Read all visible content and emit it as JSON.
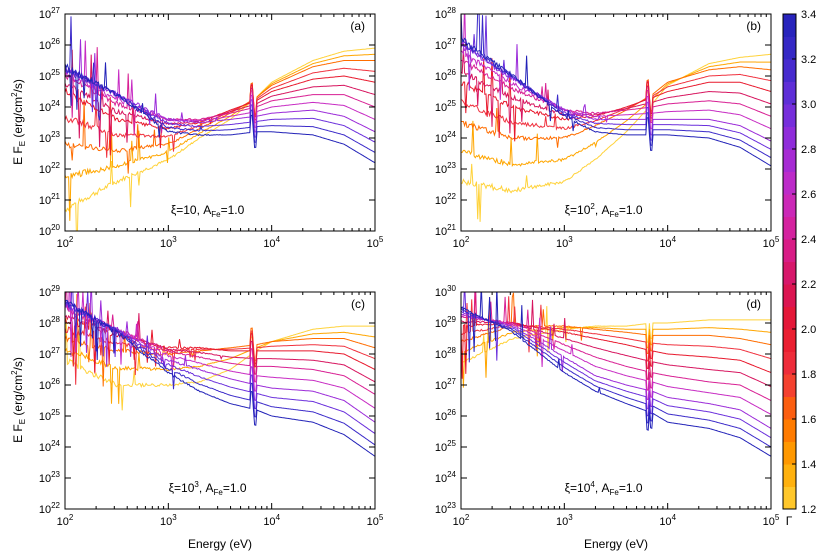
{
  "figure": {
    "xlabel": "Energy (eV)",
    "ylabel": {
      "main": "E F",
      "sub": "E",
      "paren": "(erg/cm",
      "sup": "2",
      "tail": "/s)"
    }
  },
  "colorbar": {
    "label": "Γ",
    "min": 1.2,
    "max": 3.4,
    "ticks": [
      "1.2",
      "1.4",
      "1.6",
      "1.8",
      "2.0",
      "2.2",
      "2.4",
      "2.6",
      "2.8",
      "3.0",
      "3.2",
      "3.4"
    ],
    "colors": [
      "#ffd23a",
      "#ffa600",
      "#ff6d00",
      "#f0323f",
      "#e8182c",
      "#d7145e",
      "#d81f93",
      "#c72bc3",
      "#9b2bd9",
      "#6a2fdc",
      "#3b2ac9",
      "#2222b8"
    ]
  },
  "chart_data": [
    {
      "type": "line",
      "panel": "(a)",
      "annotation": {
        "pre": "ξ=10",
        "sup": "",
        "mid": ", A",
        "sub": "Fe",
        "post": "=1.0"
      },
      "x_log10_range": [
        2,
        5
      ],
      "y_log10_range": [
        20,
        27
      ],
      "x_ticks": [
        2,
        3,
        4,
        5
      ],
      "y_ticks": [
        20,
        21,
        22,
        23,
        24,
        25,
        26,
        27
      ],
      "gamma_values": [
        1.2,
        1.4,
        1.6,
        1.8,
        2.0,
        2.2,
        2.4,
        2.6,
        2.8,
        3.0,
        3.2,
        3.4
      ],
      "series_shape_log10E": [
        2.0,
        2.5,
        3.0,
        3.3,
        3.6,
        3.85,
        4.0,
        4.4,
        4.7,
        5.0
      ],
      "series": [
        {
          "gamma": 1.2,
          "log10_EFE": [
            20.7,
            21.6,
            22.3,
            23.0,
            23.6,
            24.3,
            24.8,
            25.5,
            25.8,
            25.9
          ]
        },
        {
          "gamma": 1.6,
          "log10_EFE": [
            22.8,
            22.6,
            22.8,
            23.3,
            23.8,
            24.3,
            24.7,
            25.3,
            25.5,
            25.5
          ]
        },
        {
          "gamma": 2.0,
          "log10_EFE": [
            24.5,
            23.6,
            23.3,
            23.5,
            23.9,
            24.2,
            24.5,
            24.9,
            25.0,
            24.8
          ]
        },
        {
          "gamma": 2.4,
          "log10_EFE": [
            25.0,
            24.1,
            23.6,
            23.6,
            23.8,
            24.0,
            24.2,
            24.4,
            24.4,
            24.0
          ]
        },
        {
          "gamma": 2.8,
          "log10_EFE": [
            25.2,
            24.4,
            23.6,
            23.5,
            23.6,
            23.7,
            23.8,
            23.9,
            23.7,
            23.2
          ]
        },
        {
          "gamma": 3.4,
          "log10_EFE": [
            25.3,
            24.4,
            23.2,
            23.1,
            23.1,
            23.2,
            23.2,
            23.1,
            22.8,
            22.2
          ]
        }
      ]
    },
    {
      "type": "line",
      "panel": "(b)",
      "annotation": {
        "pre": "ξ=10",
        "sup": "2",
        "mid": ", A",
        "sub": "Fe",
        "post": "=1.0"
      },
      "x_log10_range": [
        2,
        5
      ],
      "y_log10_range": [
        21,
        28
      ],
      "x_ticks": [
        2,
        3,
        4,
        5
      ],
      "y_ticks": [
        21,
        22,
        23,
        24,
        25,
        26,
        27,
        28
      ],
      "gamma_values": [
        1.2,
        1.4,
        1.6,
        1.8,
        2.0,
        2.2,
        2.4,
        2.6,
        2.8,
        3.0,
        3.2,
        3.4
      ],
      "series_shape_log10E": [
        2.0,
        2.5,
        3.0,
        3.3,
        3.6,
        3.85,
        4.0,
        4.4,
        4.7,
        5.0
      ],
      "series": [
        {
          "gamma": 1.2,
          "log10_EFE": [
            22.6,
            22.3,
            22.6,
            23.3,
            24.2,
            25.1,
            25.7,
            26.4,
            26.6,
            26.7
          ]
        },
        {
          "gamma": 1.6,
          "log10_EFE": [
            24.5,
            24.0,
            24.0,
            24.4,
            24.9,
            25.4,
            25.8,
            26.2,
            26.3,
            26.2
          ]
        },
        {
          "gamma": 2.0,
          "log10_EFE": [
            25.8,
            25.0,
            24.6,
            24.7,
            25.0,
            25.3,
            25.5,
            25.8,
            25.8,
            25.5
          ]
        },
        {
          "gamma": 2.4,
          "log10_EFE": [
            26.5,
            25.6,
            24.9,
            24.8,
            24.9,
            25.0,
            25.1,
            25.2,
            25.1,
            24.7
          ]
        },
        {
          "gamma": 2.8,
          "log10_EFE": [
            27.0,
            25.9,
            24.9,
            24.6,
            24.6,
            24.6,
            24.6,
            24.6,
            24.4,
            23.9
          ]
        },
        {
          "gamma": 3.4,
          "log10_EFE": [
            27.2,
            26.0,
            24.7,
            24.2,
            24.1,
            24.1,
            24.1,
            24.0,
            23.7,
            23.1
          ]
        }
      ]
    },
    {
      "type": "line",
      "panel": "(c)",
      "annotation": {
        "pre": "ξ=10",
        "sup": "3",
        "mid": ", A",
        "sub": "Fe",
        "post": "=1.0"
      },
      "x_log10_range": [
        2,
        5
      ],
      "y_log10_range": [
        22,
        29
      ],
      "x_ticks": [
        2,
        3,
        4,
        5
      ],
      "y_ticks": [
        22,
        23,
        24,
        25,
        26,
        27,
        28,
        29
      ],
      "gamma_values": [
        1.2,
        1.4,
        1.6,
        1.8,
        2.0,
        2.2,
        2.4,
        2.6,
        2.8,
        3.0,
        3.2,
        3.4
      ],
      "series_shape_log10E": [
        2.0,
        2.5,
        3.0,
        3.3,
        3.6,
        3.85,
        4.0,
        4.4,
        4.7,
        5.0
      ],
      "series": [
        {
          "gamma": 1.2,
          "log10_EFE": [
            26.8,
            26.0,
            26.0,
            26.1,
            26.5,
            27.1,
            27.4,
            27.8,
            27.9,
            27.9
          ]
        },
        {
          "gamma": 1.6,
          "log10_EFE": [
            27.5,
            27.1,
            27.0,
            27.1,
            27.2,
            27.3,
            27.4,
            27.5,
            27.5,
            27.2
          ]
        },
        {
          "gamma": 2.0,
          "log10_EFE": [
            28.1,
            27.6,
            27.2,
            27.2,
            27.1,
            27.1,
            27.1,
            27.1,
            27.0,
            26.5
          ]
        },
        {
          "gamma": 2.4,
          "log10_EFE": [
            28.4,
            27.8,
            27.1,
            26.9,
            26.7,
            26.6,
            26.6,
            26.5,
            26.3,
            25.7
          ]
        },
        {
          "gamma": 2.8,
          "log10_EFE": [
            28.6,
            27.8,
            26.8,
            26.5,
            26.2,
            26.0,
            25.9,
            25.8,
            25.5,
            24.8
          ]
        },
        {
          "gamma": 3.4,
          "log10_EFE": [
            28.7,
            27.7,
            26.4,
            25.8,
            25.4,
            25.2,
            25.0,
            24.8,
            24.4,
            23.7
          ]
        }
      ]
    },
    {
      "type": "line",
      "panel": "(d)",
      "annotation": {
        "pre": "ξ=10",
        "sup": "4",
        "mid": ", A",
        "sub": "Fe",
        "post": "=1.0"
      },
      "x_log10_range": [
        2,
        5
      ],
      "y_log10_range": [
        23,
        30
      ],
      "x_ticks": [
        2,
        3,
        4,
        5
      ],
      "y_ticks": [
        23,
        24,
        25,
        26,
        27,
        28,
        29,
        30
      ],
      "gamma_values": [
        1.2,
        1.4,
        1.6,
        1.8,
        2.0,
        2.2,
        2.4,
        2.6,
        2.8,
        3.0,
        3.2,
        3.4
      ],
      "series_shape_log10E": [
        2.0,
        2.5,
        3.0,
        3.3,
        3.6,
        3.85,
        4.0,
        4.4,
        4.7,
        5.0
      ],
      "series": [
        {
          "gamma": 1.2,
          "log10_EFE": [
            27.7,
            28.5,
            28.8,
            28.9,
            28.9,
            29.0,
            29.0,
            29.1,
            29.1,
            29.1
          ]
        },
        {
          "gamma": 1.6,
          "log10_EFE": [
            28.4,
            28.9,
            28.9,
            28.8,
            28.7,
            28.6,
            28.6,
            28.6,
            28.5,
            28.3
          ]
        },
        {
          "gamma": 2.0,
          "log10_EFE": [
            28.9,
            29.0,
            28.7,
            28.5,
            28.3,
            28.1,
            28.0,
            27.9,
            27.8,
            27.4
          ]
        },
        {
          "gamma": 2.4,
          "log10_EFE": [
            29.2,
            29.0,
            28.3,
            27.9,
            27.6,
            27.4,
            27.3,
            27.1,
            27.0,
            26.5
          ]
        },
        {
          "gamma": 2.8,
          "log10_EFE": [
            29.3,
            28.9,
            27.9,
            27.3,
            27.0,
            26.8,
            26.6,
            26.4,
            26.2,
            25.6
          ]
        },
        {
          "gamma": 3.4,
          "log10_EFE": [
            29.5,
            28.7,
            27.4,
            26.8,
            26.4,
            26.1,
            25.8,
            25.6,
            25.3,
            24.7
          ]
        }
      ]
    }
  ]
}
